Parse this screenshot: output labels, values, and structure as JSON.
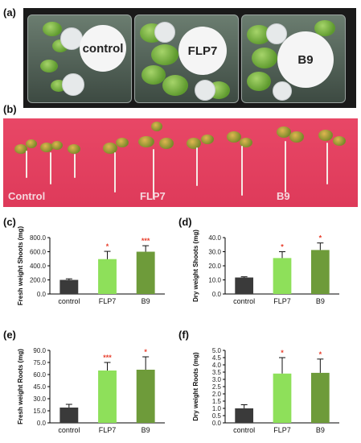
{
  "panels": {
    "a": "(a)",
    "b": "(b)",
    "c": "(c)",
    "d": "(d)",
    "e": "(e)",
    "f": "(f)"
  },
  "photo_a": {
    "plates": [
      "control",
      "FLP7",
      "B9"
    ]
  },
  "photo_b": {
    "labels": [
      "Control",
      "FLP7",
      "B9"
    ]
  },
  "colors": {
    "control": "#3a3a3a",
    "FLP7": "#8ee05a",
    "B9": "#6e9b3a",
    "star": "#e8402e"
  },
  "chart_data": [
    {
      "id": "c",
      "type": "bar",
      "categories": [
        "control",
        "FLP7",
        "B9"
      ],
      "values": [
        200,
        495,
        600
      ],
      "errors": [
        15,
        110,
        85
      ],
      "significance": [
        "",
        "*",
        "***"
      ],
      "ylabel": "Fresh weight Shoots (mg)",
      "ylim": [
        0,
        800
      ],
      "ticks": [
        "0.0",
        "200.0",
        "400.0",
        "600.0",
        "800.0"
      ]
    },
    {
      "id": "d",
      "type": "bar",
      "categories": [
        "control",
        "FLP7",
        "B9"
      ],
      "values": [
        11.7,
        25.5,
        31.2
      ],
      "errors": [
        0.5,
        4.5,
        5.0
      ],
      "significance": [
        "",
        "*",
        "*"
      ],
      "ylabel": "Dry weight Shoots (mg)",
      "ylim": [
        0,
        40
      ],
      "ticks": [
        "0.0",
        "10.0",
        "20.0",
        "30.0",
        "40.0"
      ]
    },
    {
      "id": "e",
      "type": "bar",
      "categories": [
        "control",
        "FLP7",
        "B9"
      ],
      "values": [
        19,
        65,
        66
      ],
      "errors": [
        4,
        10,
        16
      ],
      "significance": [
        "",
        "***",
        "*"
      ],
      "ylabel": "Fresh weight Roots (mg)",
      "ylim": [
        0,
        90
      ],
      "ticks": [
        "0.0",
        "15.0",
        "30.0",
        "45.0",
        "60.0",
        "75.0",
        "90.0"
      ]
    },
    {
      "id": "f",
      "type": "bar",
      "categories": [
        "control",
        "FLP7",
        "B9"
      ],
      "values": [
        1.0,
        3.4,
        3.45
      ],
      "errors": [
        0.25,
        1.1,
        0.95
      ],
      "significance": [
        "",
        "*",
        "*"
      ],
      "ylabel": "Dry weight Roots (mg)",
      "ylim": [
        0,
        5
      ],
      "ticks": [
        "0.0",
        "0.5",
        "1.0",
        "1.5",
        "2.0",
        "2.5",
        "3.0",
        "3.5",
        "4.0",
        "4.5",
        "5.0"
      ]
    }
  ]
}
